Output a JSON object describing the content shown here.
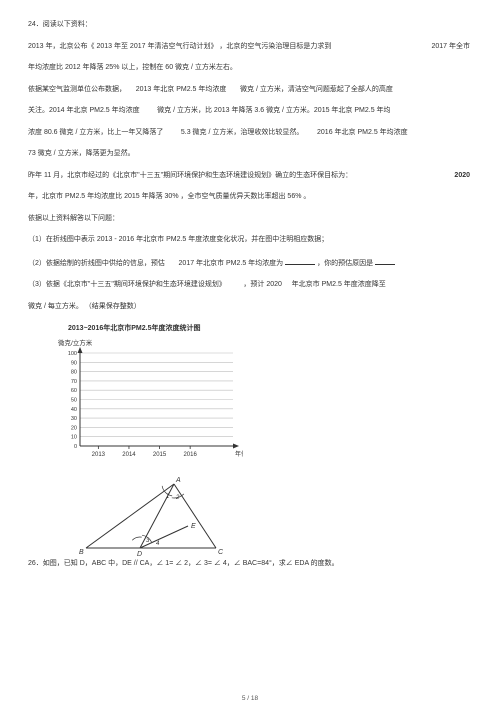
{
  "header": "2013 年，北京公布《  2013 年至 2017 年清洁空气行动计划》",
  "q24": {
    "num": "24．",
    "intro": "阅读以下资料：",
    "p1a": "2013 年，北京公布《  2013 年至 2017 年清洁空气行动计划》  ，北京的空气污染治理目标是力求到",
    "p1_year": "2017 年全市",
    "p2": "年均浓度比  2012 年降落  25% 以上，控制在   60  微克 / 立方米左右。",
    "p3a": "依据某空气监测单位公布数据，",
    "p3b": "2013 年北京 PM2.5 年均浓度",
    "p3c": "微克 / 立方米，清洁空气问题惹起了全部人的高度",
    "p4a": "关注。2014 年北京 PM2.5 年均浓度",
    "p4b": "微克 / 立方米，比 2013 年降落 3.6 微克 / 立方米。2015 年北京 PM2.5 年均",
    "p5a": "浓度 80.6  微克 / 立方米，比上一年又降落了",
    "p5b": "5.3  微克 / 立方米，治理收效比较显然。",
    "p5c": "2016 年北京 PM2.5 年均浓度",
    "p6": "73 微克 / 立方米，降落更为显然。",
    "p7a": "昨年 11 月，北京市经过的《北京市\"十三五\"期间环境保护和生态环境建设规划》确立的生态环保目标为：",
    "p7_year": "2020",
    "p8": "年，北京市 PM2.5 年均浓度比   2015 年降落  30% ，全市空气质量优异天数比率超出      56% 。",
    "p9": "依据以上资料解答以下问题：",
    "sub1": "（1）在折线图中表示  2013 - 2016 年北京市 PM2.5 年度浓度变化状况，并在图中注明相应数据；",
    "sub2a": "（2）依据绘制的折线图中供给的信息，预估",
    "sub2b": "2017 年北京市 PM2.5 年均浓度为",
    "sub2c": "，你的预估原因是",
    "sub2d": "。",
    "sub3a": "（3）依据《北京市\"十三五\"期间环境保护和生态环境建设规划》",
    "sub3b": "，预计 2020",
    "sub3c": "年北京市 PM2.5 年度浓度降至",
    "sub4": "微克 / 每立方米。 （结果保存整数）",
    "chart": {
      "title": "2013~2016年北京市PM2.5年度浓度统计图",
      "ylabel": "微克/立方米",
      "xlabel": "年份",
      "yticks": [
        "100",
        "90",
        "80",
        "70",
        "60",
        "50",
        "40",
        "30",
        "20",
        "10",
        "0"
      ],
      "xticks": [
        "2013",
        "2014",
        "2015",
        "2016"
      ],
      "grid_color": "#bdbdbd",
      "axis_color": "#333333",
      "bg": "#ffffff",
      "width": 170,
      "height": 120
    }
  },
  "q26": {
    "text": "26．如图，已知 D，ABC 中，DE // CA，∠ 1= ∠ 2，∠ 3= ∠ 4，∠ BAC=84°，求∠  EDA 的度数。",
    "geom": {
      "labels": {
        "A": "A",
        "B": "B",
        "C": "C",
        "D": "D",
        "E": "E",
        "a1": "1",
        "a2": "2",
        "a3": "3",
        "a4": "4"
      },
      "stroke": "#333333"
    }
  },
  "footer": "5 / 18"
}
